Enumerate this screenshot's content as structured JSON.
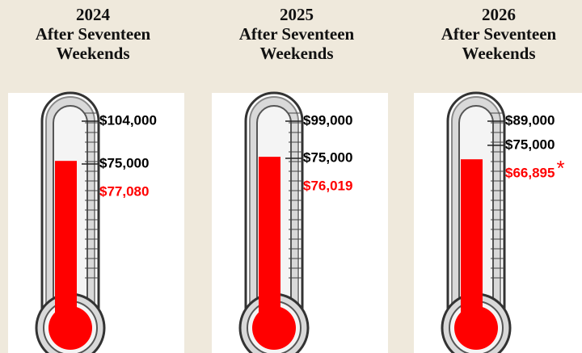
{
  "chart_data": [
    {
      "type": "thermometer",
      "title": "2024",
      "subtitle": "After Seventeen Weekends",
      "ylim": [
        0,
        104000
      ],
      "yticks": [
        {
          "value": 104000,
          "label": "$104,000"
        },
        {
          "value": 75000,
          "label": "$75,000"
        }
      ],
      "value": 77080,
      "value_label": "$77,080",
      "color": "#ff0000"
    },
    {
      "type": "thermometer",
      "title": "2025",
      "subtitle": "After Seventeen Weekends",
      "ylim": [
        0,
        99000
      ],
      "yticks": [
        {
          "value": 99000,
          "label": "$99,000"
        },
        {
          "value": 75000,
          "label": "$75,000"
        }
      ],
      "value": 76019,
      "value_label": "$76,019",
      "color": "#ff0000"
    },
    {
      "type": "thermometer",
      "title": "2026",
      "subtitle": "After Seventeen Weekends",
      "ylim": [
        0,
        89000
      ],
      "yticks": [
        {
          "value": 89000,
          "label": "$89,000"
        },
        {
          "value": 75000,
          "label": "$75,000"
        }
      ],
      "value": 66895,
      "value_label": "$66,895",
      "annotation": "*",
      "color": "#ff0000"
    }
  ]
}
